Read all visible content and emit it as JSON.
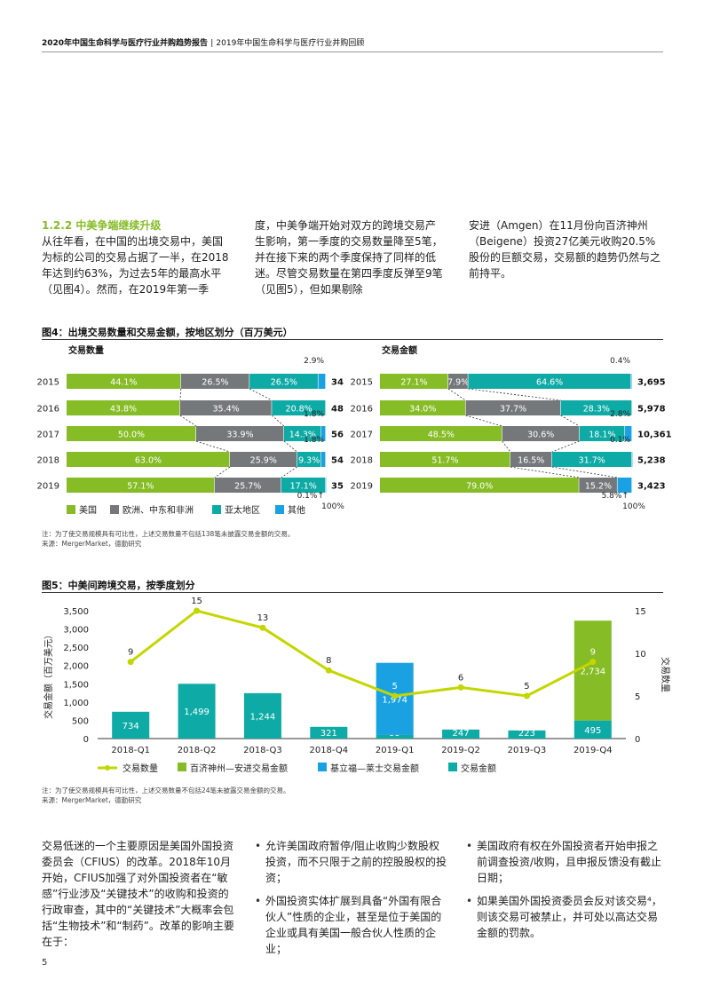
{
  "header": {
    "title": "2020年中国生命科学与医疗行业并购趋势报告",
    "separator": "|",
    "subtitle": "2019年中国生命科学与医疗行业并购回顾"
  },
  "section": {
    "title": "1.2.2 中美争端继续升级",
    "col1": "从往年看，在中国的出境交易中，美国为标的公司的交易占据了一半，在2018年达到约63%，为过去5年的最高水平（见图4）。然而，在2019年第一季",
    "col2": "度，中美争端开始对双方的跨境交易产生影响，第一季度的交易数量降至5笔，并在接下来的两个季度保持了同样的低迷。尽管交易数量在第四季度反弹至9笔（见图5），但如果剔除",
    "col3": "安进（Amgen）在11月份向百济神州（Beigene）投资27亿美元收购20.5%股份的巨额交易，交易额的趋势仍然与之前持平。"
  },
  "figure4": {
    "title": "图4：出境交易数量和交易金额，按地区划分（百万美元）",
    "note": "注：为了使交易规模具有可比性，上述交易数量不包括138笔未披露交易金额的交易。",
    "source": "来源：MergerMarket，德勤研究",
    "legend": [
      {
        "label": "美国",
        "color": "#86bc25"
      },
      {
        "label": "欧洲、中东和非洲",
        "color": "#75787b"
      },
      {
        "label": "亚太地区",
        "color": "#0eaaa5"
      },
      {
        "label": "其他",
        "color": "#1aa1e1"
      }
    ]
  },
  "figure5": {
    "title": "图5：中美间跨境交易，按季度划分",
    "note": "注：为了使交易规模具有可比性，上述交易数量不包括24笔未披露交易金额的交易。",
    "source": "来源：MergerMarket，德勤研究"
  },
  "body2": {
    "col1": "交易低迷的一个主要原因是美国外国投资委员会（CFIUS）的改革。2018年10月开始，CFIUS加强了对外国投资者在“敏感”行业涉及“关键技术”的收购和投资的行政审查，其中的“关键技术”大概率会包括“生物技术”和“制药”。改革的影响主要在于：",
    "col2_bullets": [
      "允许美国政府暂停/阻止收购少数股权投资，而不只限于之前的控股股权的投资；",
      "外国投资实体扩展到具备“外国有限合伙人”性质的企业，甚至是位于美国的企业或具有美国一般合伙人性质的企业；"
    ],
    "col3_bullets": [
      "美国政府有权在外国投资者开始申报之前调查投资/收购，且申报反馈没有截止日期；",
      "如果美国外国投资委员会反对该交易⁴，则该交易可被禁止，并可处以高达交易金额的罚款。"
    ]
  },
  "page_number": "5",
  "chart_data": [
    {
      "type": "bar",
      "orientation": "horizontal",
      "stacked": "100%",
      "title": "交易数量",
      "categories": [
        "2015",
        "2016",
        "2017",
        "2018",
        "2019"
      ],
      "series": [
        {
          "name": "美国",
          "color": "#86bc25",
          "values": [
            44.1,
            43.8,
            50.0,
            63.0,
            57.1
          ],
          "labels": [
            "44.1%",
            "43.8%",
            "50.0%",
            "63.0%",
            "57.1%"
          ]
        },
        {
          "name": "欧洲、中东和非洲",
          "color": "#75787b",
          "values": [
            26.5,
            35.4,
            33.9,
            25.9,
            25.7
          ],
          "labels": [
            "26.5%",
            "35.4%",
            "33.9%",
            "25.9%",
            "25.7%"
          ]
        },
        {
          "name": "亚太地区",
          "color": "#0eaaa5",
          "values": [
            26.5,
            20.8,
            14.3,
            9.3,
            17.1
          ],
          "labels": [
            "26.5%",
            "20.8%",
            "14.3%",
            "9.3%",
            "17.1%"
          ]
        },
        {
          "name": "其他",
          "color": "#1aa1e1",
          "values": [
            2.9,
            0.0,
            1.8,
            1.8,
            0.1
          ],
          "labels": [
            "2.9%",
            "",
            "1.8%",
            "1.8%",
            "0.1%"
          ]
        }
      ],
      "totals": [
        "34",
        "48",
        "56",
        "54",
        "35"
      ],
      "annotation": "100%"
    },
    {
      "type": "bar",
      "orientation": "horizontal",
      "stacked": "100%",
      "title": "交易金额",
      "categories": [
        "2015",
        "2016",
        "2017",
        "2018",
        "2019"
      ],
      "series": [
        {
          "name": "美国",
          "color": "#86bc25",
          "values": [
            27.1,
            34.0,
            48.5,
            51.7,
            79.0
          ],
          "labels": [
            "27.1%",
            "34.0%",
            "48.5%",
            "51.7%",
            "79.0%"
          ]
        },
        {
          "name": "欧洲、中东和非洲",
          "color": "#75787b",
          "values": [
            7.9,
            37.7,
            30.6,
            16.5,
            15.2
          ],
          "labels": [
            "7.9%",
            "37.7%",
            "30.6%",
            "16.5%",
            "15.2%"
          ]
        },
        {
          "name": "亚太地区",
          "color": "#0eaaa5",
          "values": [
            64.6,
            28.3,
            18.1,
            31.7,
            0.0
          ],
          "labels": [
            "64.6%",
            "28.3%",
            "18.1%",
            "31.7%",
            ""
          ]
        },
        {
          "name": "其他",
          "color": "#1aa1e1",
          "values": [
            0.4,
            0.0,
            2.8,
            0.1,
            5.8
          ],
          "labels": [
            "0.4%",
            "",
            "2.8%",
            "0.1%",
            "5.8%"
          ]
        }
      ],
      "totals": [
        "3,695",
        "5,978",
        "10,361",
        "5,238",
        "3,423"
      ],
      "annotation": "100%"
    },
    {
      "type": "bar",
      "combo": "bar+line",
      "categories": [
        "2018-Q1",
        "2018-Q2",
        "2018-Q3",
        "2018-Q4",
        "2019-Q1",
        "2019-Q2",
        "2019-Q3",
        "2019-Q4"
      ],
      "ylabel": "交易金额（百万美元）",
      "ylim": [
        0,
        3500
      ],
      "yticks": [
        "0",
        "500",
        "1,000",
        "1,500",
        "2,000",
        "2,500",
        "3,000",
        "3,500"
      ],
      "y2label": "交易数量",
      "y2lim": [
        0,
        15
      ],
      "y2ticks": [
        "0",
        "5",
        "10",
        "15"
      ],
      "bars": [
        {
          "series": "交易金额",
          "color": "#0eaaa5",
          "value": 734,
          "label": "734"
        },
        {
          "series": "交易金额",
          "color": "#0eaaa5",
          "value": 1499,
          "label": "1,499"
        },
        {
          "series": "交易金额",
          "color": "#0eaaa5",
          "value": 1244,
          "label": "1,244"
        },
        {
          "series": "交易金额",
          "color": "#0eaaa5",
          "value": 321,
          "label": "321"
        },
        {
          "stack": [
            {
              "series": "交易金额",
              "color": "#0eaaa5",
              "value": 99,
              "label": "99"
            },
            {
              "series": "基立福—莱士交易金额",
              "color": "#1aa1e1",
              "value": 1974,
              "label": "1,974"
            }
          ]
        },
        {
          "series": "交易金额",
          "color": "#0eaaa5",
          "value": 247,
          "label": "247"
        },
        {
          "series": "交易金额",
          "color": "#0eaaa5",
          "value": 223,
          "label": "223"
        },
        {
          "stack": [
            {
              "series": "交易金额",
              "color": "#0eaaa5",
              "value": 495,
              "label": "495"
            },
            {
              "series": "百济神州—安进交易金额",
              "color": "#86bc25",
              "value": 2734,
              "label": "2,734"
            }
          ]
        }
      ],
      "line": {
        "name": "交易数量",
        "color": "#c4d600",
        "values": [
          9,
          15,
          13,
          8,
          5,
          6,
          5,
          9
        ]
      },
      "legend": [
        {
          "label": "交易数量",
          "color": "#c4d600",
          "kind": "line"
        },
        {
          "label": "百济神州—安进交易金额",
          "color": "#86bc25",
          "kind": "box"
        },
        {
          "label": "基立福—莱士交易金额",
          "color": "#1aa1e1",
          "kind": "box"
        },
        {
          "label": "交易金额",
          "color": "#0eaaa5",
          "kind": "box"
        }
      ]
    }
  ]
}
